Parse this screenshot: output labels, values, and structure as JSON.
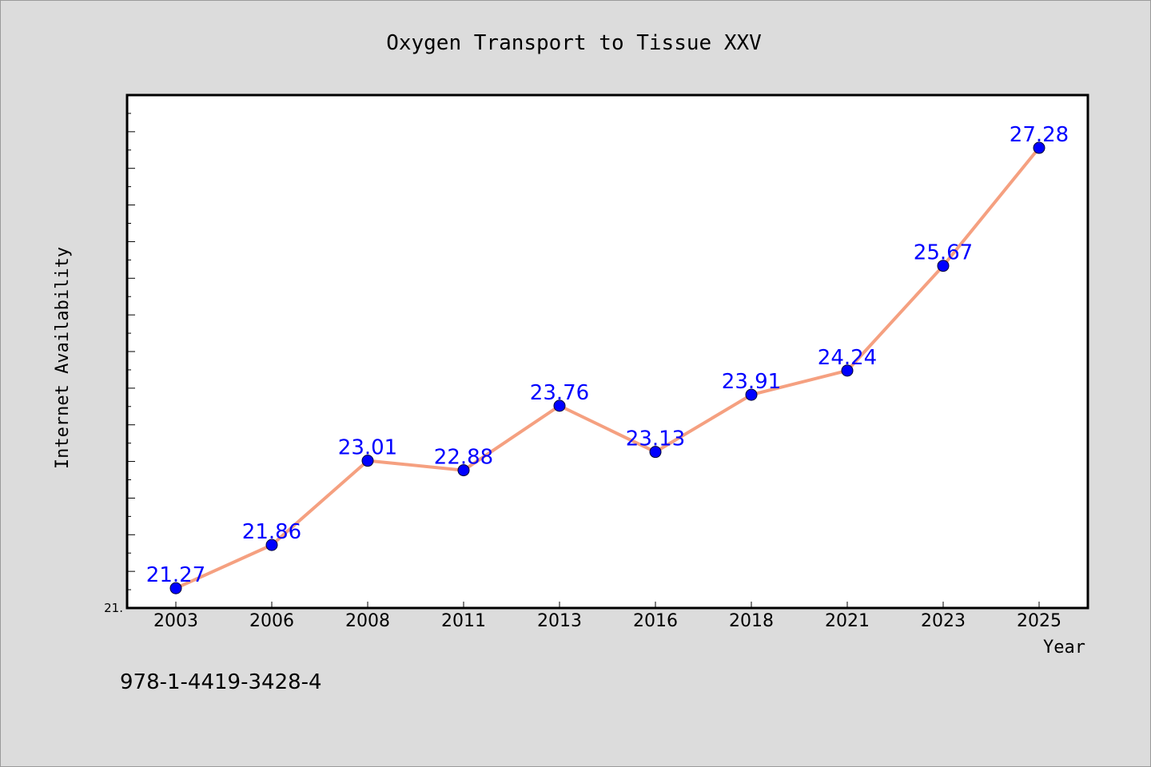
{
  "chart_data": {
    "type": "line",
    "title": "Oxygen Transport to Tissue XXV",
    "xlabel": "Year",
    "ylabel": "Internet Availability",
    "categories": [
      "2003",
      "2006",
      "2008",
      "2011",
      "2013",
      "2016",
      "2018",
      "2021",
      "2023",
      "2025"
    ],
    "values": [
      21.27,
      21.86,
      23.01,
      22.88,
      23.76,
      23.13,
      23.91,
      24.24,
      25.67,
      27.28
    ],
    "data_labels": [
      "21.27",
      "21.86",
      "23.01",
      "22.88",
      "23.76",
      "23.13",
      "23.91",
      "24.24",
      "25.67",
      "27.28"
    ],
    "y_tick_label": "21.",
    "ylim": [
      21.0,
      28.0
    ],
    "grid": false,
    "legend": "none",
    "colors": {
      "line": "#f5a080",
      "marker": "#0000ff",
      "label": "#0000ff",
      "background": "#dcdcdc",
      "plot_background": "#ffffff"
    }
  },
  "footnote": "978-1-4419-3428-4"
}
